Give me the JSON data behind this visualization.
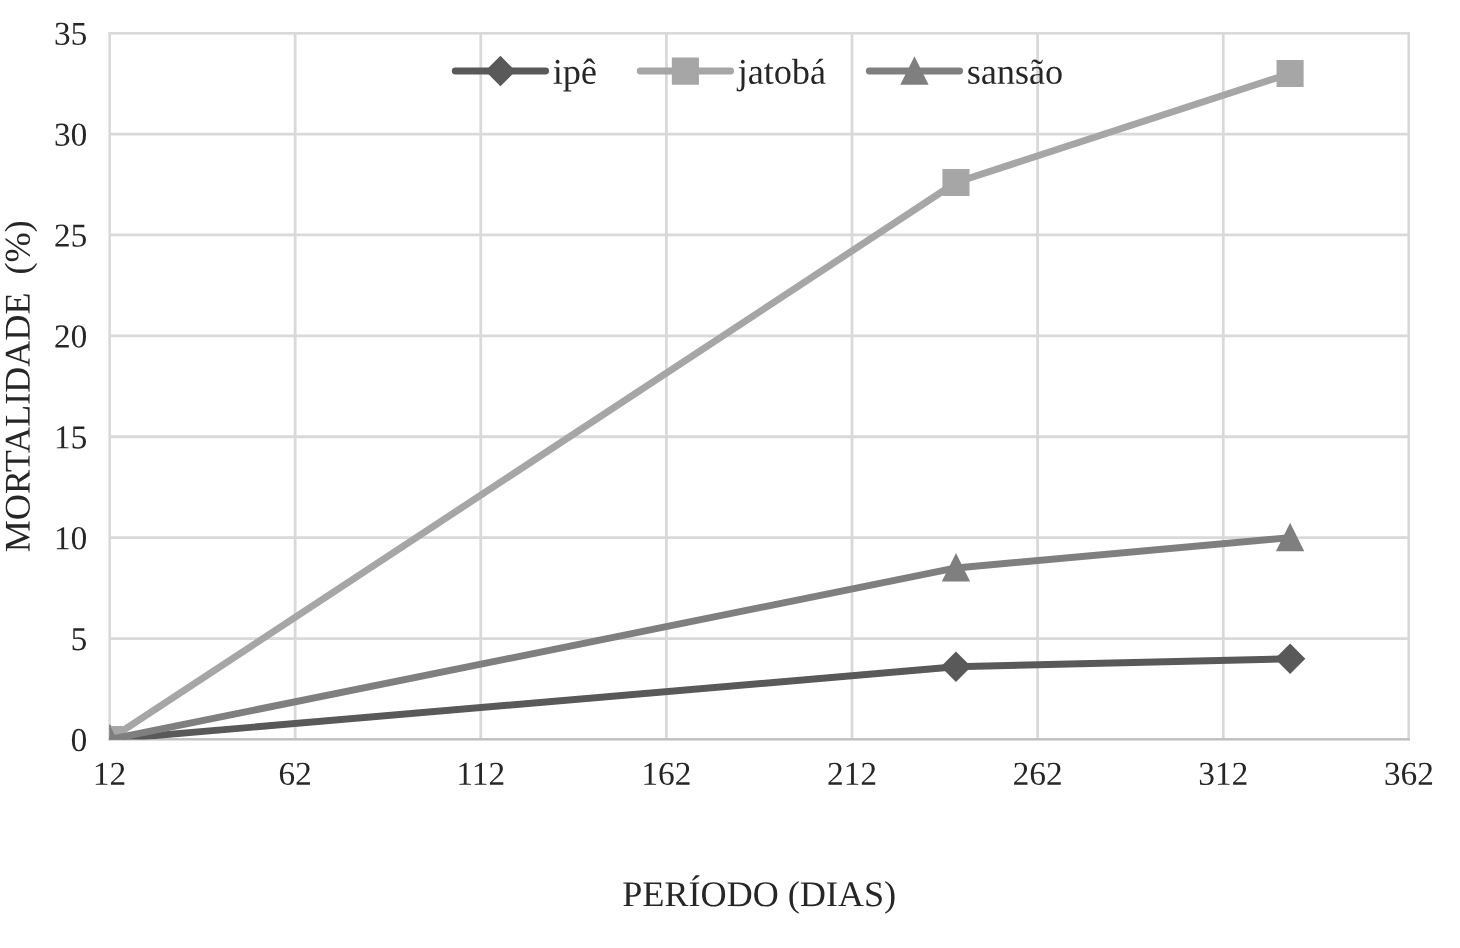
{
  "chart_data": {
    "type": "line",
    "xlabel": "PERÍODO (DIAS)",
    "ylabel": "MORTALIDADE  (%)",
    "xlim": [
      12,
      362
    ],
    "xticks": [
      12,
      62,
      112,
      162,
      212,
      262,
      312,
      362
    ],
    "ylim": [
      0,
      35
    ],
    "yticks": [
      0,
      5,
      10,
      15,
      20,
      25,
      30,
      35
    ],
    "x": [
      12,
      240,
      330
    ],
    "series": [
      {
        "name": "ipê",
        "color": "#595959",
        "values": [
          0,
          3.6,
          4.0
        ],
        "marker": "diamond"
      },
      {
        "name": "jatobá",
        "color": "#a6a6a6",
        "values": [
          0,
          27.6,
          33.0
        ],
        "marker": "square"
      },
      {
        "name": "sansão",
        "color": "#7f7f7f",
        "values": [
          0,
          8.5,
          10.0
        ],
        "marker": "triangle"
      }
    ],
    "grid": true,
    "legend": "top",
    "line_style": "solid"
  }
}
